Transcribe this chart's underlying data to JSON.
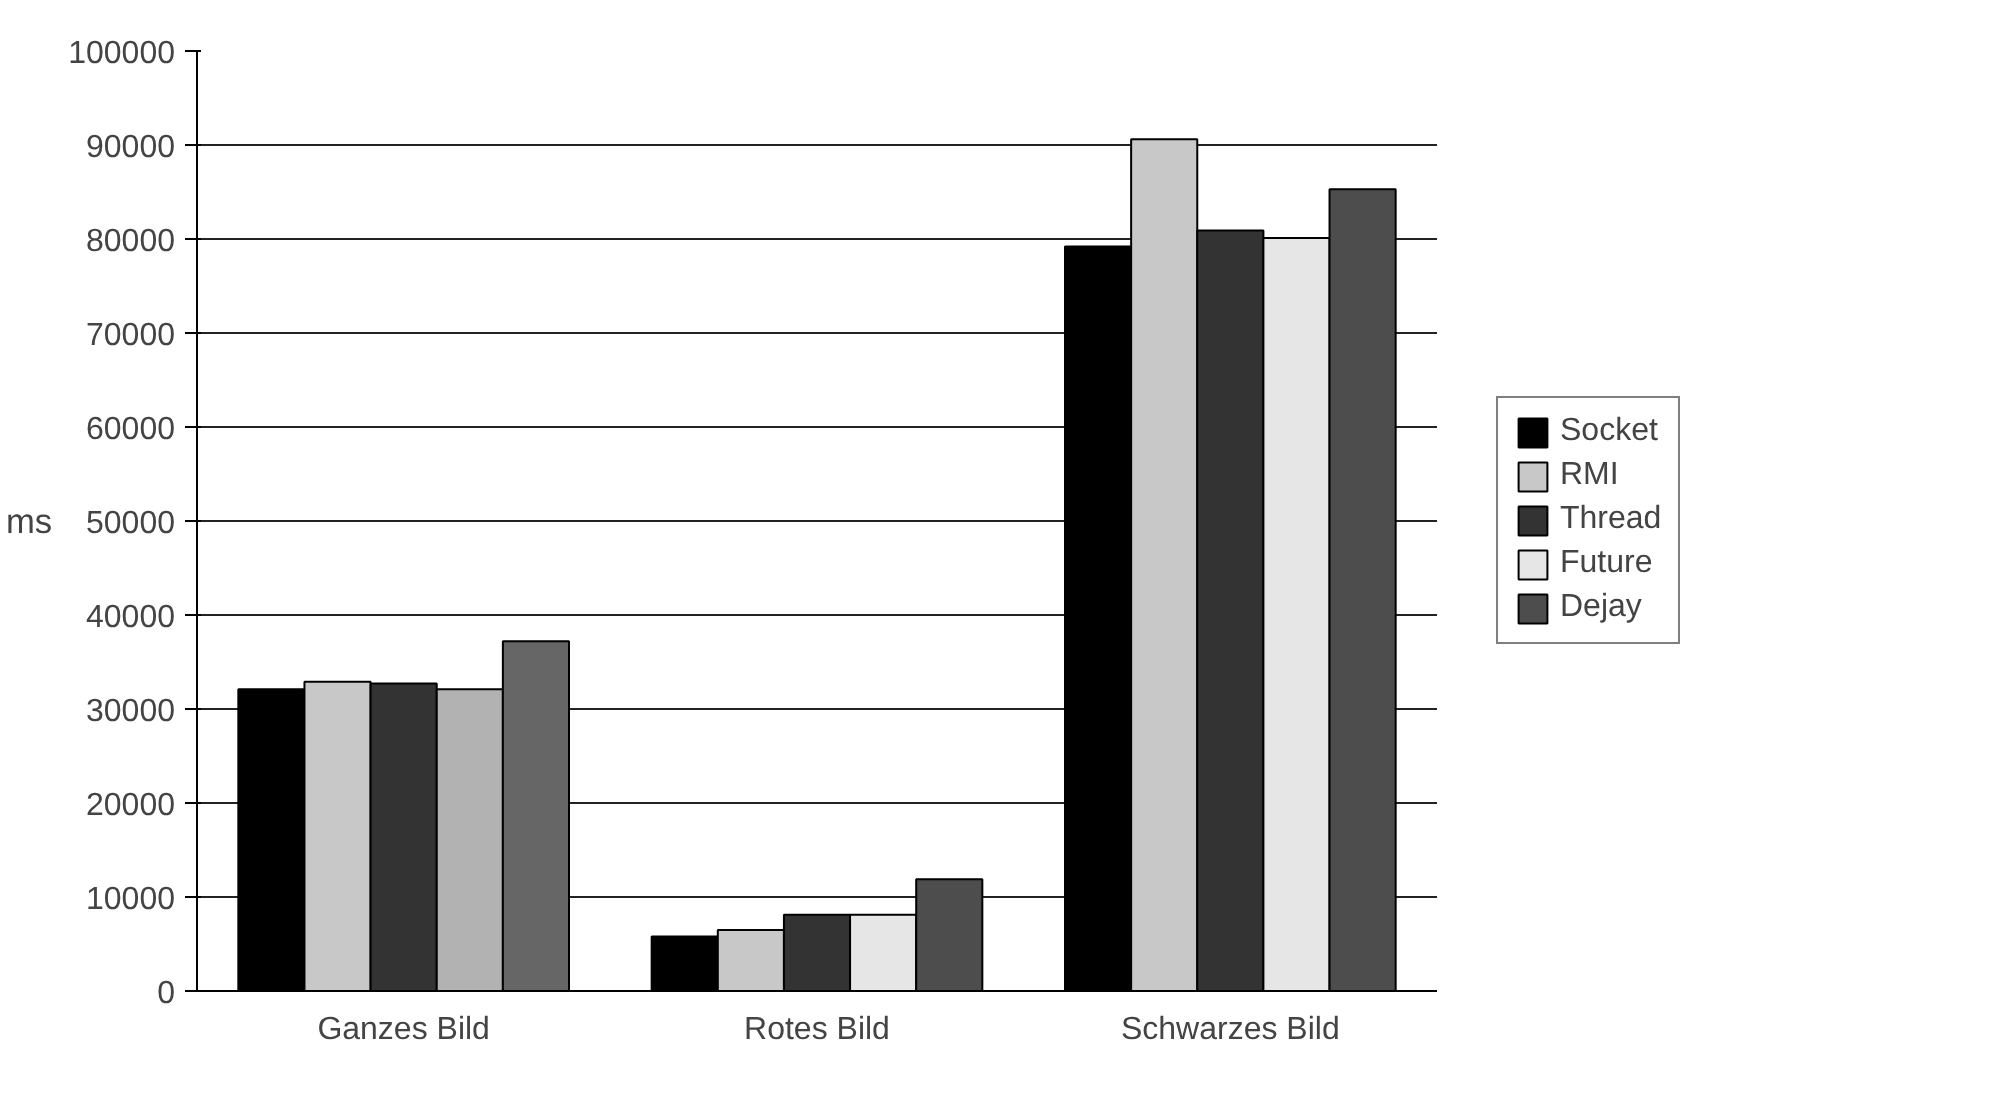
{
  "chart_data": {
    "type": "bar",
    "ylabel": "ms",
    "categories": [
      "Ganzes Bild",
      "Rotes Bild",
      "Schwarzes Bild"
    ],
    "series": [
      {
        "name": "Socket",
        "color": "#000000",
        "values": [
          32100,
          5800,
          79200
        ]
      },
      {
        "name": "RMI",
        "color": "#c8c8c8",
        "values": [
          32900,
          6500,
          90600
        ]
      },
      {
        "name": "Thread",
        "color": "#333333",
        "values": [
          32700,
          8100,
          80900
        ]
      },
      {
        "name": "Future",
        "color": "#e6e6e6",
        "colors": [
          "#b2b2b2",
          "#e6e6e6",
          "#e6e6e6"
        ],
        "values": [
          32100,
          8100,
          80100
        ]
      },
      {
        "name": "Dejay",
        "color": "#4d4d4d",
        "colors": [
          "#666666",
          "#4d4d4d",
          "#4d4d4d"
        ],
        "values": [
          37200,
          11900,
          85300
        ]
      }
    ],
    "ylim": [
      0,
      100000
    ],
    "yticks": [
      0,
      10000,
      20000,
      30000,
      40000,
      50000,
      60000,
      70000,
      80000,
      90000,
      100000
    ],
    "grid": "y",
    "legend": "right"
  }
}
